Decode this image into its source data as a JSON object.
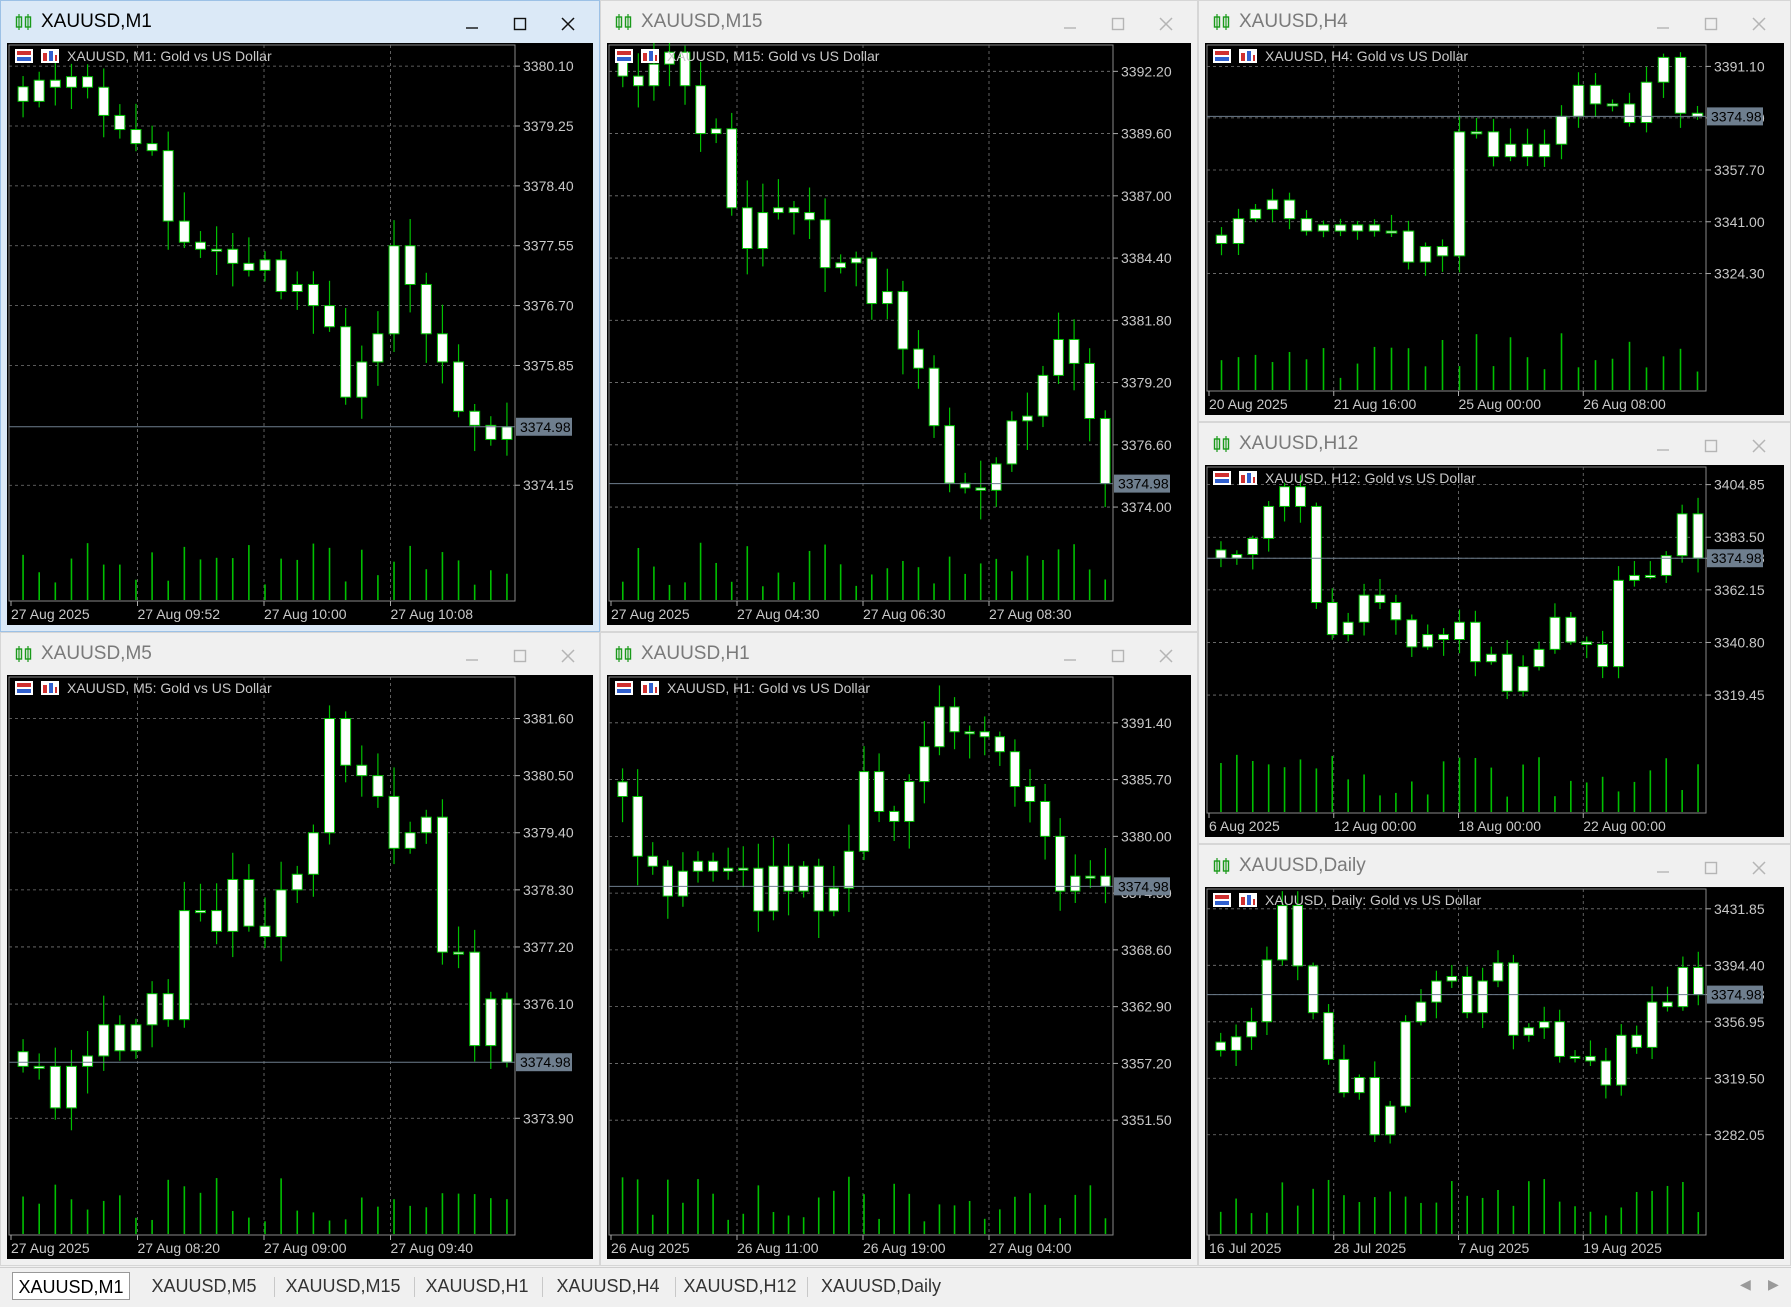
{
  "colors": {
    "up": "#ffffff",
    "down": "#ffffff",
    "wick": "#00c000",
    "volume": "#00c000",
    "text": "#c8c8c8",
    "grid": "#777777",
    "price_line": "#6e7e8e",
    "price_tag_bg": "#6e7e8e",
    "price_tag_text": "#000000"
  },
  "icons": {
    "window": "candlestick-chart-icon",
    "minimize": "minimize-icon",
    "maximize": "maximize-icon",
    "close": "close-icon",
    "one_click": "one-click-trading-icon",
    "trade_panel": "trade-panel-icon"
  },
  "windows": [
    {
      "id": "m1",
      "title": "XAUUSD,M1",
      "label": "XAUUSD, M1:  Gold vs US Dollar",
      "active": true,
      "chart_data": {
        "type": "candlestick",
        "price_scale": [
          "3380.10",
          "3379.25",
          "3378.40",
          "3377.55",
          "3376.70",
          "3375.85",
          "3374.15"
        ],
        "time_labels": [
          "27 Aug 2025",
          "27 Aug 09:52",
          "27 Aug 10:00",
          "27 Aug 10:08"
        ],
        "current_price": "3374.98",
        "ylim": [
          3373.5,
          3380.4
        ],
        "close": [
          3379.6,
          3379.9,
          3379.8,
          3379.95,
          3379.8,
          3379.4,
          3379.2,
          3379.0,
          3378.9,
          3377.9,
          3377.6,
          3377.5,
          3377.5,
          3377.3,
          3377.2,
          3377.35,
          3376.9,
          3377.0,
          3376.7,
          3376.4,
          3375.4,
          3375.9,
          3376.3,
          3377.55,
          3377.0,
          3376.3,
          3375.9,
          3375.2,
          3375.0,
          3374.8,
          3374.98
        ]
      }
    },
    {
      "id": "m15",
      "title": "XAUUSD,M15",
      "label": "XAUUSD, M15:  Gold vs US Dollar",
      "active": false,
      "chart_data": {
        "type": "candlestick",
        "price_scale": [
          "3392.20",
          "3389.60",
          "3387.00",
          "3384.40",
          "3381.80",
          "3379.20",
          "3376.60",
          "3374.00"
        ],
        "time_labels": [
          "27 Aug 2025",
          "27 Aug 04:30",
          "27 Aug 06:30",
          "27 Aug 08:30"
        ],
        "current_price": "3374.98",
        "ylim": [
          3373.0,
          3393.3
        ],
        "close": [
          3392.0,
          3391.6,
          3392.5,
          3393.0,
          3391.6,
          3389.6,
          3389.8,
          3386.5,
          3384.8,
          3386.3,
          3386.5,
          3386.3,
          3386.0,
          3384.0,
          3384.2,
          3384.4,
          3382.5,
          3383.0,
          3380.6,
          3379.8,
          3377.4,
          3375.0,
          3374.8,
          3374.7,
          3375.8,
          3377.6,
          3377.8,
          3379.5,
          3381.0,
          3380.0,
          3377.7,
          3374.98
        ]
      }
    },
    {
      "id": "m5",
      "title": "XAUUSD,M5",
      "label": "XAUUSD, M5:  Gold vs US Dollar",
      "active": false,
      "chart_data": {
        "type": "candlestick",
        "price_scale": [
          "3381.60",
          "3380.50",
          "3379.40",
          "3378.30",
          "3377.20",
          "3376.10",
          "3373.90"
        ],
        "time_labels": [
          "27 Aug 2025",
          "27 Aug 08:20",
          "27 Aug 09:00",
          "27 Aug 09:40"
        ],
        "current_price": "3374.98",
        "ylim": [
          3373.0,
          3382.4
        ],
        "close": [
          3374.9,
          3374.9,
          3374.1,
          3374.9,
          3375.1,
          3375.7,
          3375.2,
          3375.7,
          3376.3,
          3375.8,
          3377.9,
          3377.9,
          3377.5,
          3378.5,
          3377.6,
          3377.4,
          3378.3,
          3378.6,
          3379.4,
          3381.6,
          3380.7,
          3380.5,
          3380.1,
          3379.1,
          3379.4,
          3379.7,
          3377.1,
          3377.1,
          3375.3,
          3376.2,
          3374.98
        ]
      }
    },
    {
      "id": "h1",
      "title": "XAUUSD,H1",
      "label": "XAUUSD, H1:  Gold vs US Dollar",
      "active": false,
      "chart_data": {
        "type": "candlestick",
        "price_scale": [
          "3391.40",
          "3385.70",
          "3380.00",
          "3374.30",
          "3368.60",
          "3362.90",
          "3357.20",
          "3351.50"
        ],
        "time_labels": [
          "26 Aug 2025",
          "26 Aug 11:00",
          "26 Aug 19:00",
          "27 Aug 04:00"
        ],
        "current_price": "3374.98",
        "ylim": [
          3347.0,
          3396.0
        ],
        "close": [
          3384.0,
          3378.0,
          3377.0,
          3374.0,
          3376.5,
          3377.5,
          3376.5,
          3376.8,
          3376.8,
          3372.5,
          3377.0,
          3374.5,
          3377.0,
          3372.5,
          3374.8,
          3378.5,
          3386.5,
          3382.5,
          3381.5,
          3385.5,
          3389.0,
          3393.0,
          3390.5,
          3390.5,
          3390.0,
          3388.5,
          3385.0,
          3383.5,
          3380.0,
          3374.5,
          3376.0,
          3376.0,
          3374.98
        ]
      }
    },
    {
      "id": "h4",
      "title": "XAUUSD,H4",
      "label": "XAUUSD, H4:  Gold vs US Dollar",
      "active": false,
      "chart_data": {
        "type": "candlestick",
        "price_scale": [
          "3391.10",
          "3374.50",
          "3357.70",
          "3341.00",
          "3324.30"
        ],
        "time_labels": [
          "20 Aug 2025",
          "21 Aug 16:00",
          "25 Aug 00:00",
          "26 Aug 08:00"
        ],
        "current_price": "3374.98",
        "ylim": [
          3309.0,
          3398.0
        ],
        "close": [
          3334.0,
          3342.0,
          3345.0,
          3348.0,
          3342.0,
          3338.0,
          3340.0,
          3338.0,
          3340.0,
          3338.0,
          3338.0,
          3328.0,
          3333.0,
          3330.0,
          3370.0,
          3370.0,
          3362.0,
          3366.0,
          3362.0,
          3366.0,
          3375.0,
          3385.0,
          3379.0,
          3379.0,
          3373.0,
          3386.0,
          3394.0,
          3376.0,
          3374.98
        ]
      }
    },
    {
      "id": "h12",
      "title": "XAUUSD,H12",
      "label": "XAUUSD, H12:  Gold vs US Dollar",
      "active": false,
      "chart_data": {
        "type": "candlestick",
        "price_scale": [
          "3404.85",
          "3383.50",
          "3374.98",
          "3362.15",
          "3340.80",
          "3319.45"
        ],
        "time_labels": [
          "6 Aug 2025",
          "12 Aug 00:00",
          "18 Aug 00:00",
          "22 Aug 00:00"
        ],
        "current_price": "3374.98",
        "ylim": [
          3300.0,
          3412.0
        ],
        "close": [
          3375.0,
          3376.5,
          3383.0,
          3396.0,
          3404.0,
          3396.0,
          3357.0,
          3344.0,
          3349.0,
          3360.0,
          3357.0,
          3350.0,
          3339.0,
          3344.0,
          3342.0,
          3349.0,
          3333.0,
          3336.0,
          3321.0,
          3331.0,
          3338.0,
          3351.0,
          3341.0,
          3340.0,
          3331.0,
          3366.0,
          3368.0,
          3368.0,
          3376.0,
          3393.0,
          3374.98
        ]
      }
    },
    {
      "id": "daily",
      "title": "XAUUSD,Daily",
      "label": "XAUUSD, Daily:  Gold vs US Dollar",
      "active": false,
      "chart_data": {
        "type": "candlestick",
        "price_scale": [
          "3431.85",
          "3394.40",
          "3374.98",
          "3356.95",
          "3319.50",
          "3282.05"
        ],
        "time_labels": [
          "16 Jul 2025",
          "28 Jul 2025",
          "7 Aug 2025",
          "19 Aug 2025"
        ],
        "current_price": "3374.98",
        "ylim": [
          3262.0,
          3445.0
        ],
        "close": [
          3338.0,
          3347.0,
          3357.0,
          3398.0,
          3434.0,
          3394.0,
          3363.0,
          3332.0,
          3310.0,
          3320.0,
          3282.0,
          3301.0,
          3357.0,
          3370.0,
          3384.0,
          3387.0,
          3363.0,
          3384.0,
          3396.0,
          3348.0,
          3353.0,
          3357.0,
          3334.0,
          3334.0,
          3331.0,
          3315.0,
          3348.0,
          3340.0,
          3370.0,
          3367.0,
          3393.0,
          3374.98
        ]
      }
    }
  ],
  "tabs": [
    "XAUUSD,M1",
    "XAUUSD,M5",
    "XAUUSD,M15",
    "XAUUSD,H1",
    "XAUUSD,H4",
    "XAUUSD,H12",
    "XAUUSD,Daily"
  ],
  "selected_tab": 0
}
